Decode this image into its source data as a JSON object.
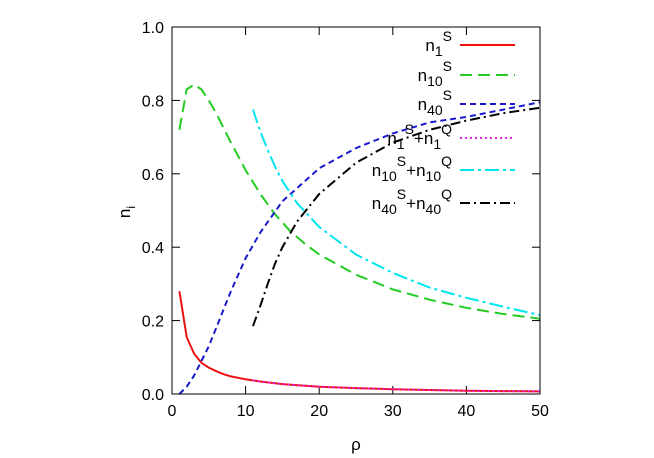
{
  "chart_data": {
    "type": "line",
    "title": "",
    "xlabel": "ρ",
    "ylabel": "n",
    "ylabel_sub": "i",
    "xlim": [
      0,
      50
    ],
    "ylim": [
      0.0,
      1.0
    ],
    "xticks": [
      0,
      10,
      20,
      30,
      40,
      50
    ],
    "yticks": [
      "0.0",
      "0.2",
      "0.4",
      "0.6",
      "0.8",
      "1.0"
    ],
    "grid": false,
    "legend_position": "top-right",
    "series": [
      {
        "name": "n1^S",
        "legend": {
          "base": "n",
          "sub1": "1",
          "sup1": "S"
        },
        "color": "#ee1111",
        "dash": "",
        "points": [
          [
            1,
            0.28
          ],
          [
            2,
            0.155
          ],
          [
            3,
            0.11
          ],
          [
            4,
            0.085
          ],
          [
            5,
            0.072
          ],
          [
            6,
            0.062
          ],
          [
            7,
            0.054
          ],
          [
            8,
            0.048
          ],
          [
            10,
            0.04
          ],
          [
            12,
            0.034
          ],
          [
            15,
            0.027
          ],
          [
            20,
            0.02
          ],
          [
            25,
            0.016
          ],
          [
            30,
            0.013
          ],
          [
            35,
            0.011
          ],
          [
            40,
            0.009
          ],
          [
            45,
            0.008
          ],
          [
            50,
            0.007
          ]
        ]
      },
      {
        "name": "n10^S",
        "legend": {
          "base": "n",
          "sub1": "10",
          "sup1": "S"
        },
        "color": "#22cc22",
        "dash": "12,6",
        "points": [
          [
            1,
            0.72
          ],
          [
            2,
            0.83
          ],
          [
            3,
            0.843
          ],
          [
            4,
            0.83
          ],
          [
            5,
            0.8
          ],
          [
            6,
            0.765
          ],
          [
            7,
            0.725
          ],
          [
            8,
            0.685
          ],
          [
            10,
            0.61
          ],
          [
            12,
            0.545
          ],
          [
            14,
            0.49
          ],
          [
            16,
            0.445
          ],
          [
            18,
            0.41
          ],
          [
            20,
            0.38
          ],
          [
            25,
            0.325
          ],
          [
            30,
            0.285
          ],
          [
            35,
            0.257
          ],
          [
            40,
            0.235
          ],
          [
            45,
            0.218
          ],
          [
            50,
            0.205
          ]
        ]
      },
      {
        "name": "n40^S",
        "legend": {
          "base": "n",
          "sub1": "40",
          "sup1": "S"
        },
        "color": "#1a1acc",
        "dash": "6,4",
        "points": [
          [
            1,
            0.0
          ],
          [
            2,
            0.02
          ],
          [
            3,
            0.05
          ],
          [
            4,
            0.09
          ],
          [
            5,
            0.13
          ],
          [
            6,
            0.18
          ],
          [
            7,
            0.23
          ],
          [
            8,
            0.28
          ],
          [
            10,
            0.37
          ],
          [
            12,
            0.44
          ],
          [
            15,
            0.525
          ],
          [
            20,
            0.615
          ],
          [
            25,
            0.67
          ],
          [
            30,
            0.71
          ],
          [
            35,
            0.74
          ],
          [
            40,
            0.755
          ],
          [
            45,
            0.775
          ],
          [
            50,
            0.795
          ]
        ]
      },
      {
        "name": "n1^S+n1^Q",
        "legend": {
          "base": "n",
          "sub1": "1",
          "sup1": "S",
          "plus": "+n",
          "sub2": "1",
          "sup2": "Q"
        },
        "color": "#dd22dd",
        "dash": "2,3",
        "points": [
          [
            11,
            0.037
          ],
          [
            12,
            0.034
          ],
          [
            15,
            0.027
          ],
          [
            20,
            0.02
          ],
          [
            25,
            0.016
          ],
          [
            30,
            0.013
          ],
          [
            35,
            0.011
          ],
          [
            40,
            0.009
          ],
          [
            45,
            0.008
          ],
          [
            50,
            0.007
          ]
        ]
      },
      {
        "name": "n10^S+n10^Q",
        "legend": {
          "base": "n",
          "sub1": "10",
          "sup1": "S",
          "plus": "+n",
          "sub2": "10",
          "sup2": "Q"
        },
        "color": "#00e5ee",
        "dash": "14,4,3,4",
        "points": [
          [
            11,
            0.775
          ],
          [
            12,
            0.715
          ],
          [
            13,
            0.665
          ],
          [
            14,
            0.62
          ],
          [
            15,
            0.58
          ],
          [
            17,
            0.52
          ],
          [
            20,
            0.455
          ],
          [
            25,
            0.38
          ],
          [
            30,
            0.33
          ],
          [
            35,
            0.29
          ],
          [
            40,
            0.262
          ],
          [
            45,
            0.238
          ],
          [
            50,
            0.215
          ]
        ]
      },
      {
        "name": "n40^S+n40^Q",
        "legend": {
          "base": "n",
          "sub1": "40",
          "sup1": "S",
          "plus": "+n",
          "sub2": "40",
          "sup2": "Q"
        },
        "color": "#000000",
        "dash": "10,4,2,4",
        "points": [
          [
            11,
            0.185
          ],
          [
            12,
            0.24
          ],
          [
            13,
            0.3
          ],
          [
            14,
            0.355
          ],
          [
            15,
            0.4
          ],
          [
            17,
            0.47
          ],
          [
            20,
            0.545
          ],
          [
            25,
            0.63
          ],
          [
            30,
            0.685
          ],
          [
            35,
            0.72
          ],
          [
            40,
            0.745
          ],
          [
            45,
            0.765
          ],
          [
            50,
            0.78
          ]
        ]
      }
    ]
  }
}
